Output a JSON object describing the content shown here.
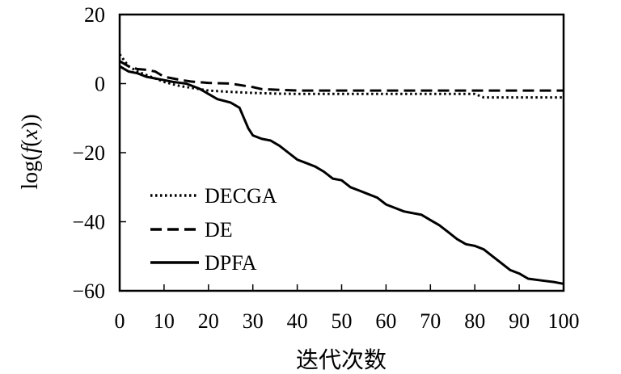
{
  "chart_data": {
    "type": "line",
    "xlabel": "迭代次数",
    "ylabel_parts": {
      "pre": "log(",
      "f": "f",
      "open": "(",
      "x": "x",
      "close": "))"
    },
    "xlim": [
      0,
      100
    ],
    "ylim": [
      -60,
      20
    ],
    "x_ticks": [
      0,
      10,
      20,
      30,
      40,
      50,
      60,
      70,
      80,
      90,
      100
    ],
    "y_ticks": [
      20,
      0,
      -20,
      -40,
      -60
    ],
    "y_tick_labels": [
      "20",
      "0",
      "−20",
      "−40",
      "−60"
    ],
    "legend_position": "bottom-left",
    "series": [
      {
        "name": "DECGA",
        "style": "dotted",
        "x": [
          0,
          2,
          4,
          6,
          8,
          10,
          12,
          14,
          16,
          18,
          20,
          25,
          30,
          35,
          40,
          50,
          60,
          70,
          80,
          82,
          90,
          100
        ],
        "y": [
          8.5,
          5,
          3.5,
          2.5,
          1.5,
          0.5,
          -0.2,
          -0.8,
          -1.2,
          -1.6,
          -2,
          -2.4,
          -2.7,
          -2.9,
          -3,
          -3,
          -3,
          -3,
          -3,
          -4,
          -4,
          -4
        ]
      },
      {
        "name": "DE",
        "style": "dashed",
        "x": [
          0,
          2,
          4,
          6,
          8,
          10,
          12,
          14,
          16,
          18,
          20,
          25,
          30,
          32,
          40,
          50,
          60,
          70,
          80,
          90,
          100
        ],
        "y": [
          6.5,
          5,
          4.2,
          4,
          3.5,
          2,
          1.5,
          1,
          0.6,
          0.4,
          0.2,
          0,
          -1,
          -1.6,
          -2,
          -2,
          -2,
          -2,
          -2,
          -2,
          -2
        ]
      },
      {
        "name": "DPFA",
        "style": "solid",
        "x": [
          0,
          2,
          4,
          6,
          8,
          10,
          12,
          15,
          18,
          20,
          22,
          25,
          27,
          28,
          29,
          30,
          32,
          34,
          36,
          38,
          40,
          42,
          44,
          46,
          48,
          50,
          52,
          54,
          56,
          58,
          60,
          62,
          64,
          66,
          68,
          70,
          72,
          74,
          76,
          78,
          80,
          82,
          84,
          86,
          88,
          90,
          92,
          95,
          98,
          100
        ],
        "y": [
          5,
          3.5,
          3,
          2,
          1.5,
          1,
          0.5,
          0,
          -1.5,
          -3,
          -4.5,
          -5.5,
          -7,
          -10,
          -13,
          -15,
          -16,
          -16.5,
          -18,
          -20,
          -22,
          -23,
          -24,
          -25.5,
          -27.5,
          -28,
          -30,
          -31,
          -32,
          -33,
          -35,
          -36,
          -37,
          -37.5,
          -38,
          -39.5,
          -41,
          -43,
          -45,
          -46.5,
          -47,
          -48,
          -50,
          -52,
          -54,
          -55,
          -56.5,
          -57,
          -57.5,
          -58
        ]
      }
    ]
  }
}
